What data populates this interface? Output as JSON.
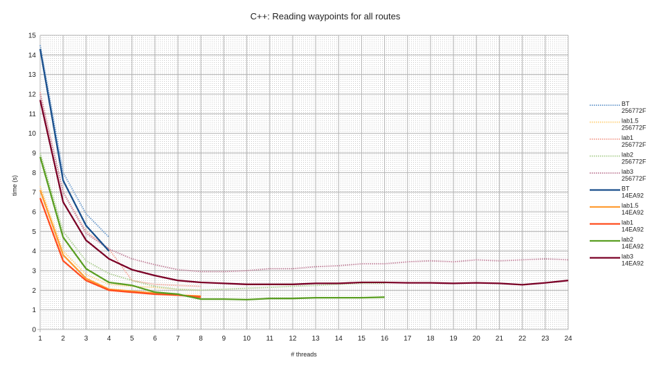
{
  "chart_data": {
    "type": "line",
    "title": "C++: Reading waypoints for all routes",
    "xlabel": "# threads",
    "ylabel": "time (s)",
    "xlim": [
      1,
      24
    ],
    "ylim": [
      0,
      15
    ],
    "x_ticks": [
      1,
      2,
      3,
      4,
      5,
      6,
      7,
      8,
      9,
      10,
      11,
      12,
      13,
      14,
      15,
      16,
      17,
      18,
      19,
      20,
      21,
      22,
      23,
      24
    ],
    "y_ticks": [
      0,
      1,
      2,
      3,
      4,
      5,
      6,
      7,
      8,
      9,
      10,
      11,
      12,
      13,
      14,
      15
    ],
    "grid": true,
    "legend_position": "right",
    "series": [
      {
        "name": "BT",
        "name2": "256772F",
        "color": "#729fcf",
        "dashed": true,
        "x": [
          1,
          2,
          3,
          4
        ],
        "y": [
          14.5,
          8.0,
          5.9,
          4.7
        ]
      },
      {
        "name": "lab1.5",
        "name2": "256772F",
        "color": "#ffd37f",
        "dashed": true,
        "x": [
          1,
          2,
          3,
          4,
          5,
          6,
          7,
          8
        ],
        "y": [
          7.3,
          4.0,
          2.8,
          2.3,
          2.2,
          2.15,
          2.05,
          2.0
        ]
      },
      {
        "name": "lab1",
        "name2": "256772F",
        "color": "#f4a698",
        "dashed": true,
        "x": [
          1,
          2,
          3,
          4,
          5,
          6,
          7,
          8
        ],
        "y": [
          12.1,
          7.0,
          5.0,
          4.1,
          2.5,
          2.3,
          2.25,
          2.2
        ]
      },
      {
        "name": "lab2",
        "name2": "256772F",
        "color": "#afd095",
        "dashed": true,
        "x": [
          1,
          2,
          3,
          4,
          5,
          6,
          7,
          8,
          9,
          10,
          11,
          12,
          13,
          14,
          15,
          16
        ],
        "y": [
          9.0,
          5.0,
          3.5,
          2.85,
          2.5,
          2.2,
          2.05,
          2.0,
          2.05,
          2.1,
          2.15,
          2.2,
          2.25,
          2.3,
          2.35,
          2.35
        ]
      },
      {
        "name": "lab3",
        "name2": "256772F",
        "color": "#c4879f",
        "dashed": true,
        "x": [
          1,
          2,
          3,
          4,
          5,
          6,
          7,
          8,
          9,
          10,
          11,
          12,
          13,
          14,
          15,
          16,
          17,
          18,
          19,
          20,
          21,
          22,
          23,
          24
        ],
        "y": [
          12.0,
          7.0,
          4.9,
          4.1,
          3.6,
          3.3,
          3.05,
          2.95,
          2.95,
          3.0,
          3.1,
          3.1,
          3.2,
          3.25,
          3.35,
          3.35,
          3.45,
          3.5,
          3.45,
          3.55,
          3.5,
          3.55,
          3.6,
          3.55
        ]
      },
      {
        "name": "BT",
        "name2": "14EA92",
        "color": "#1a4f8c",
        "dashed": false,
        "x": [
          1,
          2,
          3,
          4
        ],
        "y": [
          14.3,
          7.6,
          5.3,
          4.0
        ]
      },
      {
        "name": "lab1.5",
        "name2": "14EA92",
        "color": "#ff9d34",
        "dashed": false,
        "x": [
          1,
          2,
          3,
          4,
          5,
          6,
          7,
          8
        ],
        "y": [
          7.1,
          3.8,
          2.6,
          2.05,
          1.95,
          1.85,
          1.75,
          1.7
        ]
      },
      {
        "name": "lab1",
        "name2": "14EA92",
        "color": "#ff4d1f",
        "dashed": false,
        "x": [
          1,
          2,
          3,
          4,
          5,
          6,
          7,
          8
        ],
        "y": [
          6.7,
          3.5,
          2.5,
          2.0,
          1.9,
          1.8,
          1.75,
          1.65
        ]
      },
      {
        "name": "lab2",
        "name2": "14EA92",
        "color": "#5a9e22",
        "dashed": false,
        "x": [
          1,
          2,
          3,
          4,
          5,
          6,
          7,
          8,
          9,
          10,
          11,
          12,
          13,
          14,
          15,
          16
        ],
        "y": [
          8.8,
          4.7,
          3.1,
          2.4,
          2.25,
          1.9,
          1.8,
          1.55,
          1.55,
          1.52,
          1.58,
          1.58,
          1.62,
          1.62,
          1.62,
          1.65
        ]
      },
      {
        "name": "lab3",
        "name2": "14EA92",
        "color": "#7a0026",
        "dashed": false,
        "x": [
          1,
          2,
          3,
          4,
          5,
          6,
          7,
          8,
          9,
          10,
          11,
          12,
          13,
          14,
          15,
          16,
          17,
          18,
          19,
          20,
          21,
          22,
          23,
          24
        ],
        "y": [
          11.7,
          6.5,
          4.55,
          3.6,
          3.05,
          2.75,
          2.5,
          2.4,
          2.35,
          2.3,
          2.3,
          2.3,
          2.35,
          2.35,
          2.4,
          2.4,
          2.38,
          2.38,
          2.35,
          2.38,
          2.35,
          2.28,
          2.38,
          2.5
        ]
      }
    ]
  }
}
